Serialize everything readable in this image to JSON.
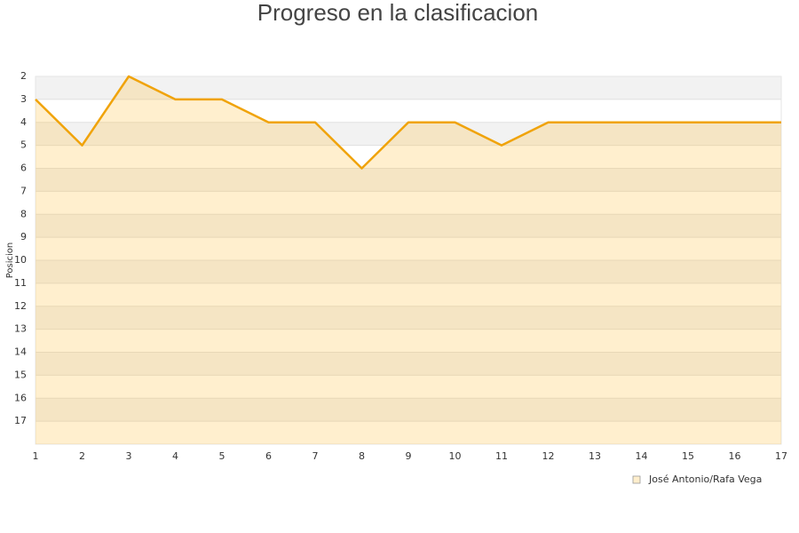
{
  "chart_data": {
    "type": "line",
    "title": "Progreso en la clasificacion",
    "y_label": "Posicion",
    "x": [
      1,
      2,
      3,
      4,
      5,
      6,
      7,
      8,
      9,
      10,
      11,
      12,
      13,
      14,
      15,
      16,
      17
    ],
    "series": [
      {
        "name": "José Antonio/Rafa Vega",
        "color": "#f0a30a",
        "values": [
          3,
          5,
          2,
          3,
          3,
          4,
          4,
          6,
          4,
          4,
          5,
          4,
          4,
          4,
          4,
          4,
          4
        ]
      }
    ],
    "xlim": [
      1,
      17
    ],
    "xticks": [
      1,
      2,
      3,
      4,
      5,
      6,
      7,
      8,
      9,
      10,
      11,
      12,
      13,
      14,
      15,
      16,
      17
    ],
    "ylim": [
      2,
      18
    ],
    "y_inverted": true,
    "yticks": [
      2,
      3,
      4,
      5,
      6,
      7,
      8,
      9,
      10,
      11,
      12,
      13,
      14,
      15,
      16,
      17
    ],
    "grid": true,
    "area_fill": true,
    "legend": "bottom-right"
  }
}
